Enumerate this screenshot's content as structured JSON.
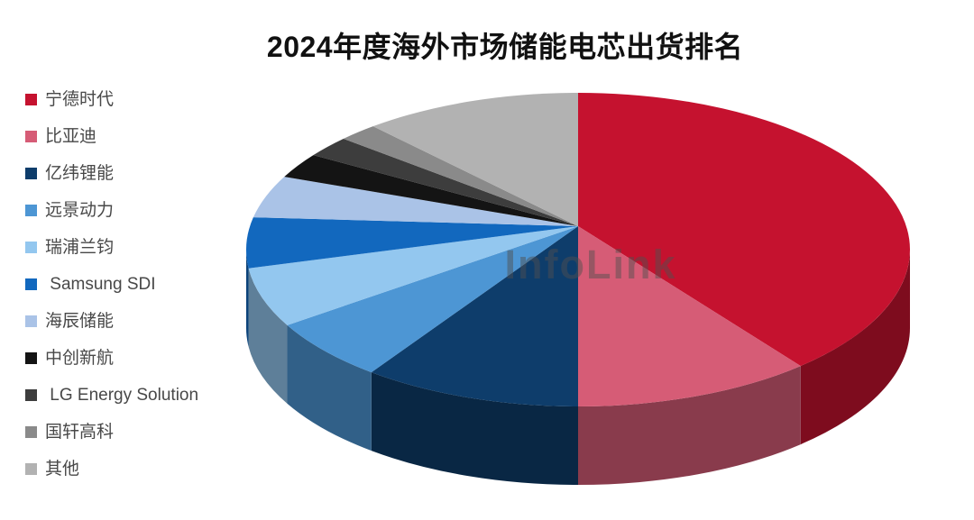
{
  "title": "2024年度海外市场储能电芯出货排名",
  "watermark": "InfoLink",
  "legend": {
    "position": "left",
    "items": [
      {
        "label": "宁德时代",
        "color": "#C5122F"
      },
      {
        "label": "比亚迪",
        "color": "#D65C76"
      },
      {
        "label": "亿纬锂能",
        "color": "#0E3D6B"
      },
      {
        "label": "远景动力",
        "color": "#4D96D4"
      },
      {
        "label": "瑞浦兰钧",
        "color": "#93C7EF"
      },
      {
        "label": " Samsung SDI",
        "color": "#1268BE"
      },
      {
        "label": "海辰储能",
        "color": "#AAC3E7"
      },
      {
        "label": "中创新航",
        "color": "#141414"
      },
      {
        "label": " LG Energy Solution",
        "color": "#3D3D3D"
      },
      {
        "label": "国轩高科",
        "color": "#8A8A8A"
      },
      {
        "label": "其他",
        "color": "#B2B2B2"
      }
    ]
  },
  "chart_data": {
    "type": "pie",
    "style": "3d-perspective",
    "title": "2024年度海外市场储能电芯出货排名",
    "legend_position": "left",
    "start_angle_deg": 0,
    "clockwise": true,
    "data_labels_shown": false,
    "values_are_estimated_share_percent": true,
    "labels": [
      "宁德时代",
      "比亚迪",
      "亿纬锂能",
      "远景动力",
      "瑞浦兰钧",
      "Samsung SDI",
      "海辰储能",
      "中创新航",
      "LG Energy Solution",
      "国轩高科",
      "其他"
    ],
    "values": [
      38.3,
      11.7,
      10.7,
      6.3,
      6.1,
      5.2,
      4.4,
      2.6,
      2.2,
      1.9,
      10.6
    ],
    "colors": [
      "#C5122F",
      "#D65C76",
      "#0E3D6B",
      "#4D96D4",
      "#93C7EF",
      "#1268BE",
      "#AAC3E7",
      "#141414",
      "#3D3D3D",
      "#8A8A8A",
      "#B2B2B2"
    ]
  }
}
